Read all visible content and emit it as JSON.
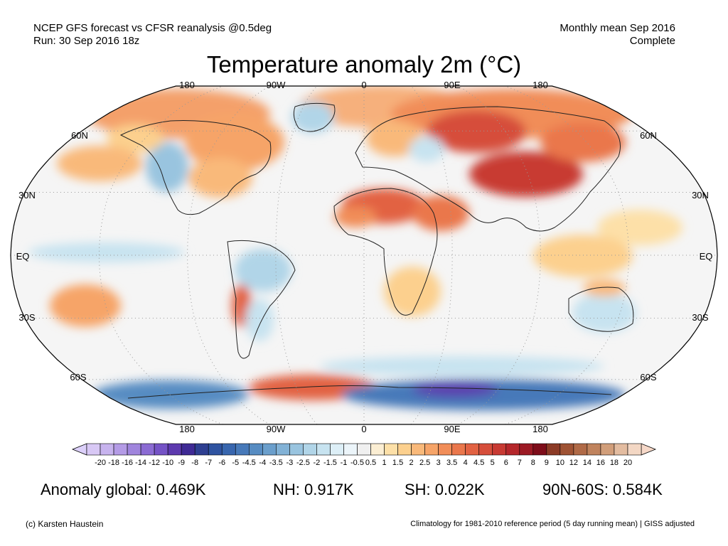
{
  "header": {
    "left_line1": "NCEP GFS forecast vs CFSR reanalysis @0.5deg",
    "left_line2": "Run: 30 Sep 2016 18z",
    "right_line1": "Monthly mean Sep 2016",
    "right_line2": "Complete"
  },
  "title": "Temperature anomaly 2m (°C)",
  "map": {
    "projection": "robinson",
    "lon_labels_top": [
      "180",
      "90W",
      "0",
      "90E",
      "180"
    ],
    "lon_labels_bottom": [
      "180",
      "90W",
      "0",
      "90E",
      "180"
    ],
    "lat_labels_left": [
      "60N",
      "30N",
      "EQ",
      "30S",
      "60S"
    ],
    "lat_labels_right": [
      "60N",
      "30N",
      "EQ",
      "30S",
      "60S"
    ],
    "gridlines": "dotted",
    "ocean_background": "#f5f5f5",
    "anomaly_regions": [
      {
        "region": "Siberia / Central Asia",
        "anomaly_c": 5
      },
      {
        "region": "Sahara / Arabia",
        "anomaly_c": 4
      },
      {
        "region": "Eastern North America",
        "anomaly_c": 2.5
      },
      {
        "region": "Weddell Sea / Antarctic Peninsula",
        "anomaly_c": 5
      },
      {
        "region": "East Antarctica",
        "anomaly_c": -7
      },
      {
        "region": "Western North America",
        "anomaly_c": -1.5
      },
      {
        "region": "Australia",
        "anomaly_c": -1.5
      }
    ]
  },
  "colorbar": {
    "labels": [
      "-20",
      "-18",
      "-16",
      "-14",
      "-12",
      "-10",
      "-9",
      "-8",
      "-7",
      "-6",
      "-5",
      "-4.5",
      "-4",
      "-3.5",
      "-3",
      "-2.5",
      "-2",
      "-1.5",
      "-1",
      "-0.5",
      "0.5",
      "1",
      "1.5",
      "2",
      "2.5",
      "3",
      "3.5",
      "4",
      "4.5",
      "5",
      "6",
      "7",
      "8",
      "9",
      "10",
      "12",
      "14",
      "16",
      "18",
      "20"
    ],
    "colors": [
      "#d8c8f5",
      "#c7b3ee",
      "#b49be6",
      "#a085dd",
      "#8b6bd3",
      "#7553c6",
      "#5d3aae",
      "#3f2a95",
      "#2e3f91",
      "#2f53a0",
      "#3866ae",
      "#4779b9",
      "#578cc2",
      "#6b9fcc",
      "#82b2d6",
      "#99c4df",
      "#b1d5e8",
      "#c7e3f0",
      "#ddeff7",
      "#ecf5fa",
      "#f0f0f0",
      "#fbeed3",
      "#fde0a8",
      "#fcd08e",
      "#f9b97a",
      "#f6a468",
      "#f18d58",
      "#ea774c",
      "#e26243",
      "#d64e3b",
      "#c83a33",
      "#b5272b",
      "#9c1a24",
      "#7e0d1a",
      "#8c3b26",
      "#9f5334",
      "#b06a47",
      "#c0835d",
      "#d19e7a",
      "#e3bca0",
      "#f3d7c4"
    ],
    "under_color": "#dcd0fa",
    "over_color": "#f6d8c8"
  },
  "stats": {
    "global": "Anomaly global: 0.469K",
    "nh": "NH: 0.917K",
    "sh": "SH: 0.022K",
    "arctic": "90N-60S: 0.584K"
  },
  "footer": {
    "credit": "(c) Karsten Haustein",
    "note": "Climatology for 1981-2010 reference period (5 day running mean) | GISS adjusted"
  }
}
